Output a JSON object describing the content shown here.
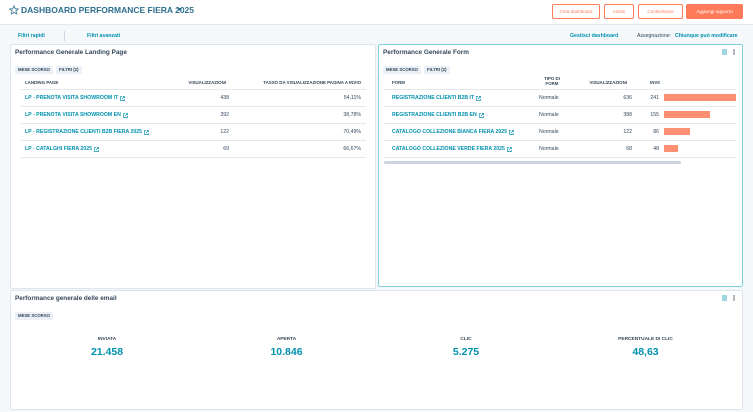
{
  "header": {
    "title": "DASHBOARD PERFORMANCE FIERA 2025",
    "buttons": [
      "Crea dashboard",
      "Azioni",
      "Condivisione",
      "Aggiungi rapporto"
    ]
  },
  "filters": {
    "quick": "Filtri rapidi",
    "advanced": "Filtri avanzati",
    "manage": "Gestisci dashboard",
    "assignment_label": "Assegnazione:",
    "assignment_value": "Chiunque può modificare"
  },
  "landing_card": {
    "title": "Performance Generale Landing Page",
    "tags": [
      "MESE SCORSO",
      "FILTRI (2)"
    ],
    "columns": [
      "LANDING PAGE",
      "VISUALIZZAZIONI",
      "TASSO DA VISUALIZZAZIONE PAGINA A INVIO"
    ],
    "rows": [
      [
        "LP - PRENOTA VISITA SHOWROOM IT",
        438,
        "54,11%"
      ],
      [
        "LP - PRENOTA VISITA SHOWROOM EN",
        392,
        "38,78%"
      ],
      [
        "LP - REGISTRAZIONE CLIENTI B2B FIERA 2025",
        122,
        "70,49%"
      ],
      [
        "LP - CATALGHI FIERA 2025",
        69,
        "66,67%"
      ]
    ]
  },
  "form_card": {
    "title": "Performance Generale Form",
    "tags": [
      "MESE SCORSO",
      "FILTRI (2)"
    ],
    "columns": [
      "FORM",
      "TIPO DI FORM",
      "VISUALIZZAZIONI",
      "INVII"
    ],
    "bar_color": "#ff8f73",
    "rows": [
      [
        "REGISTRAZIONE CLIENTI B2B IT",
        "Normale",
        636,
        241
      ],
      [
        "REGISTRAZIONE CLIENTI B2B EN",
        "Normale",
        388,
        155
      ],
      [
        "CATALOGO COLLEZIONE BIANCA FIERA 2025",
        "Normale",
        122,
        86
      ],
      [
        "CATALOGO COLLEZIONE VERDE FIERA 2025",
        "Normale",
        68,
        48
      ]
    ]
  },
  "email_card": {
    "title": "Performance generale delle email",
    "tags": [
      "MESE SCORSO"
    ],
    "kpis": [
      {
        "label": "INVIATA",
        "value": "21.458"
      },
      {
        "label": "APERTA",
        "value": "10.846"
      },
      {
        "label": "CLIC",
        "value": "5.275"
      },
      {
        "label": "PERCENTUALE DI CLIC",
        "value": "48,63"
      }
    ]
  }
}
